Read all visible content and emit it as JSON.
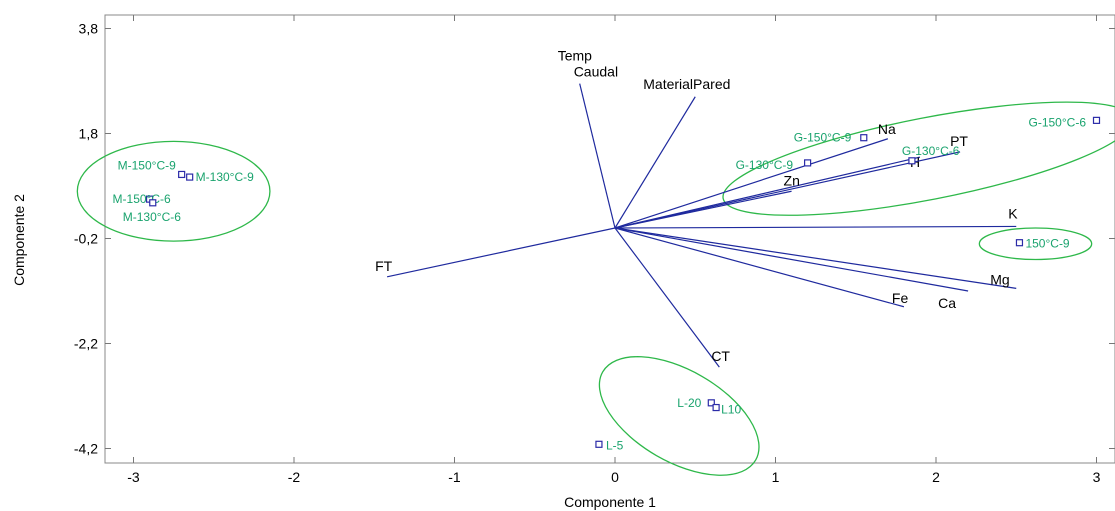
{
  "chart_data": {
    "type": "scatter",
    "subtype": "biplot",
    "title": "",
    "xlabel": "Componente 1",
    "ylabel": "Componente 2",
    "xlim": [
      -3.3,
      3.15
    ],
    "ylim": [
      -4.4,
      4.05
    ],
    "x_ticks": [
      -3,
      -2,
      -1,
      0,
      1,
      2,
      3
    ],
    "x_tick_labels": [
      "-3",
      "-2",
      "-1",
      "0",
      "1",
      "2",
      "3"
    ],
    "y_ticks": [
      3.8,
      1.8,
      -0.2,
      -2.2,
      -4.2
    ],
    "y_tick_labels": [
      "3,8",
      "1,8",
      "-0,2",
      "-2,2",
      "-4,2"
    ],
    "grid": false,
    "vector_color": "#1f2a9e",
    "point_color": "#2b2ba8",
    "label_color": "#1aa36e",
    "ellipse_color": "#2eb84a",
    "vectors": [
      {
        "name": "Temp",
        "x": -0.22,
        "y": 2.75
      },
      {
        "name": "Caudal",
        "x": -0.22,
        "y": 2.75
      },
      {
        "name": "MaterialPared",
        "x": 0.5,
        "y": 2.5
      },
      {
        "name": "Na",
        "x": 1.7,
        "y": 1.7
      },
      {
        "name": "H",
        "x": 1.9,
        "y": 1.35
      },
      {
        "name": "PT",
        "x": 2.15,
        "y": 1.45
      },
      {
        "name": "Zn",
        "x": 1.1,
        "y": 0.7
      },
      {
        "name": "K",
        "x": 2.5,
        "y": 0.03
      },
      {
        "name": "Mg",
        "x": 2.5,
        "y": -1.15
      },
      {
        "name": "Ca",
        "x": 2.2,
        "y": -1.2
      },
      {
        "name": "Fe",
        "x": 1.8,
        "y": -1.5
      },
      {
        "name": "FT",
        "x": -1.42,
        "y": -0.93
      },
      {
        "name": "CT",
        "x": 0.65,
        "y": -2.65
      }
    ],
    "observations": [
      {
        "label": "M-150°C-9",
        "x": -2.7,
        "y": 1.02
      },
      {
        "label": "M-130°C-9",
        "x": -2.65,
        "y": 0.97
      },
      {
        "label": "M-150°C-6",
        "x": -2.9,
        "y": 0.55
      },
      {
        "label": "M-130°C-6",
        "x": -2.88,
        "y": 0.48
      },
      {
        "label": "G-150°C-9",
        "x": 1.55,
        "y": 1.72
      },
      {
        "label": "G-130°C-6",
        "x": 1.85,
        "y": 1.28
      },
      {
        "label": "G-130°C-9",
        "x": 1.2,
        "y": 1.24
      },
      {
        "label": "G-150°C-6",
        "x": 3.0,
        "y": 2.05
      },
      {
        "label": "150°C-9",
        "x": 2.52,
        "y": -0.28
      },
      {
        "label": "L-20",
        "x": 0.6,
        "y": -3.33
      },
      {
        "label": "L10",
        "x": 0.63,
        "y": -3.42
      },
      {
        "label": "L-5",
        "x": -0.1,
        "y": -4.12
      }
    ],
    "groups": [
      {
        "cx": -2.75,
        "cy": 0.7,
        "rx": 0.6,
        "ry": 0.95
      },
      {
        "cx": 1.95,
        "cy": 1.32,
        "rx": 1.3,
        "ry": 0.78,
        "angle": -11
      },
      {
        "cx": 2.62,
        "cy": -0.3,
        "rx": 0.35,
        "ry": 0.3
      },
      {
        "cx": 0.4,
        "cy": -3.58,
        "rx": 0.55,
        "ry": 0.87,
        "angle": 30
      }
    ]
  }
}
